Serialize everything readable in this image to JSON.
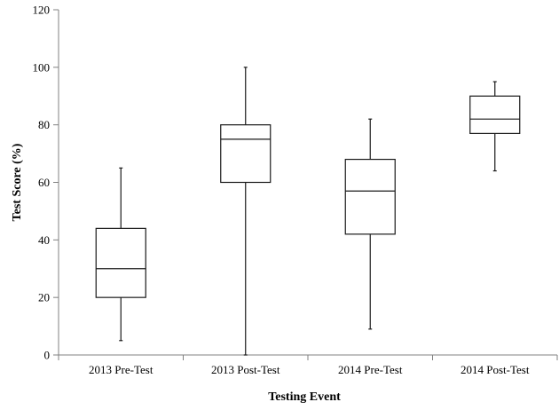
{
  "chart_data": {
    "type": "box",
    "xlabel": "Testing Event",
    "ylabel": "Test Score (%)",
    "ylim": [
      0,
      120
    ],
    "yticks": [
      0,
      20,
      40,
      60,
      80,
      100,
      120
    ],
    "grid": false,
    "categories": [
      "2013 Pre-Test",
      "2013 Post-Test",
      "2014 Pre-Test",
      "2014 Post-Test"
    ],
    "boxes": [
      {
        "min": 5,
        "q1": 20,
        "median": 30,
        "q3": 44,
        "max": 65
      },
      {
        "min": 0,
        "q1": 60,
        "median": 75,
        "q3": 80,
        "max": 100
      },
      {
        "min": 9,
        "q1": 42,
        "median": 57,
        "q3": 68,
        "max": 82
      },
      {
        "min": 64,
        "q1": 77,
        "median": 82,
        "q3": 90,
        "max": 95
      }
    ]
  }
}
